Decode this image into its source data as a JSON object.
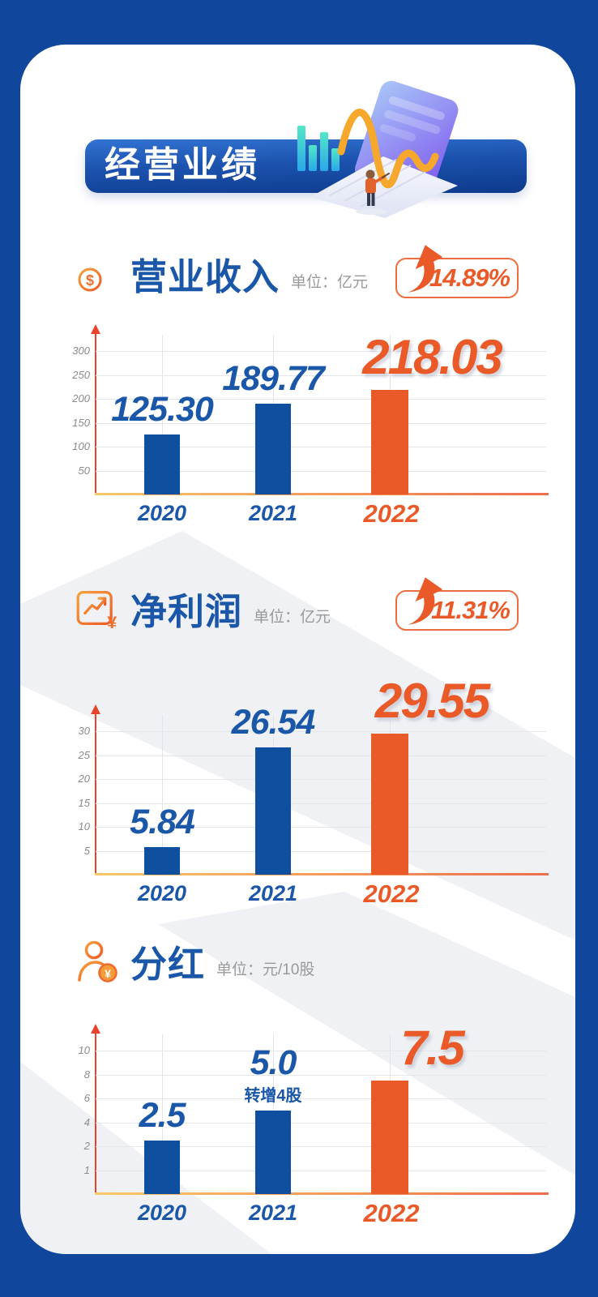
{
  "banner": {
    "label": "经营业绩"
  },
  "colors": {
    "frame_blue": "#10479c",
    "banner_blue_top": "#3273d2",
    "banner_blue_bottom": "#0d3a8c",
    "bar_blue": "#0e4fa0",
    "accent_orange": "#ea5a28",
    "text_blue": "#1a57a8",
    "unit_gray": "#9a9a9a",
    "axis_red": "#e8432c"
  },
  "sections": [
    {
      "title": "营业收入",
      "unit_label": "单位：亿元",
      "growth": "14.89%",
      "icon": "coin-stack-icon"
    },
    {
      "title": "净利润",
      "unit_label": "单位：亿元",
      "growth": "11.31%",
      "icon": "profit-chart-icon"
    },
    {
      "title": "分红",
      "unit_label": "单位：元/10股",
      "growth": null,
      "icon": "shareholder-coin-icon"
    }
  ],
  "chart_data": [
    {
      "type": "bar",
      "title": "营业收入",
      "ylabel": "亿元",
      "categories": [
        "2020",
        "2021",
        "2022"
      ],
      "values": [
        125.3,
        189.77,
        218.03
      ],
      "value_labels": [
        "125.30",
        "189.77",
        "218.03"
      ],
      "yticks": [
        50,
        100,
        150,
        200,
        250,
        300
      ],
      "ylim": [
        0,
        340
      ],
      "grid": true,
      "legend": false,
      "highlight_index": 2,
      "bar_colors": [
        "#0e4fa0",
        "#0e4fa0",
        "#ea5a28"
      ],
      "growth": "14.89%"
    },
    {
      "type": "bar",
      "title": "净利润",
      "ylabel": "亿元",
      "categories": [
        "2020",
        "2021",
        "2022"
      ],
      "values": [
        5.84,
        26.54,
        29.55
      ],
      "value_labels": [
        "5.84",
        "26.54",
        "29.55"
      ],
      "yticks": [
        5,
        10,
        15,
        20,
        25,
        30
      ],
      "ylim": [
        0,
        34
      ],
      "grid": true,
      "legend": false,
      "highlight_index": 2,
      "bar_colors": [
        "#0e4fa0",
        "#0e4fa0",
        "#ea5a28"
      ],
      "growth": "11.31%"
    },
    {
      "type": "bar",
      "title": "分红",
      "ylabel": "元/10股",
      "categories": [
        "2020",
        "2021",
        "2022"
      ],
      "values": [
        2.5,
        5.0,
        7.5
      ],
      "value_labels": [
        "2.5",
        "5.0",
        "7.5"
      ],
      "yticks": [
        1,
        2,
        4,
        6,
        8,
        10
      ],
      "ylim": [
        0,
        11.5
      ],
      "grid": true,
      "legend": false,
      "highlight_index": 2,
      "bar_colors": [
        "#0e4fa0",
        "#0e4fa0",
        "#ea5a28"
      ],
      "notes": [
        null,
        "转增4股",
        null
      ]
    }
  ]
}
